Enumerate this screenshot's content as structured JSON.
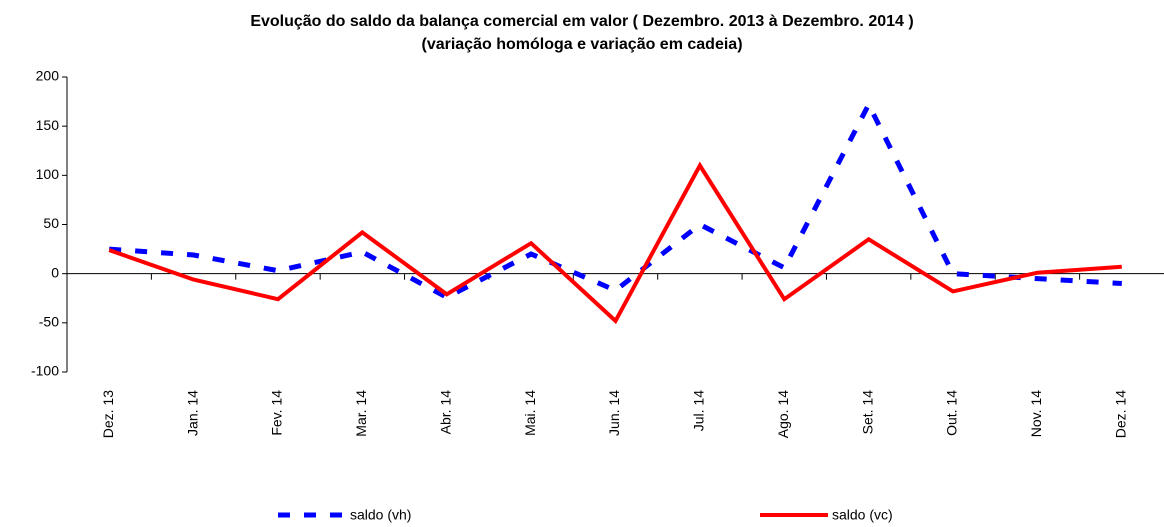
{
  "chart_data": {
    "type": "line",
    "title": "Evolução do saldo da balança comercial  em valor ( Dezembro. 2013 à Dezembro. 2014 )",
    "subtitle": "(variação homóloga e variação em cadeia)",
    "categories": [
      "Dez. 13",
      "Jan. 14",
      "Fev. 14",
      "Mar. 14",
      "Abr. 14",
      "Mai. 14",
      "Jun. 14",
      "Jul. 14",
      "Ago. 14",
      "Set. 14",
      "Out. 14",
      "Nov. 14",
      "Dez. 14"
    ],
    "series": [
      {
        "name": "saldo (vh)",
        "color": "#0000ff",
        "dashed": true,
        "values": [
          25,
          19,
          3,
          22,
          -24,
          20,
          -17,
          50,
          6,
          172,
          0,
          -5,
          -10
        ]
      },
      {
        "name": "saldo (vc)",
        "color": "#ff0000",
        "dashed": false,
        "values": [
          24,
          -6,
          -26,
          42,
          -21,
          31,
          -48,
          110,
          -26,
          35,
          -18,
          1,
          7
        ]
      }
    ],
    "ylim": [
      -100,
      200
    ],
    "yticks": [
      -100,
      -50,
      0,
      50,
      100,
      150,
      200
    ],
    "grid": false
  }
}
